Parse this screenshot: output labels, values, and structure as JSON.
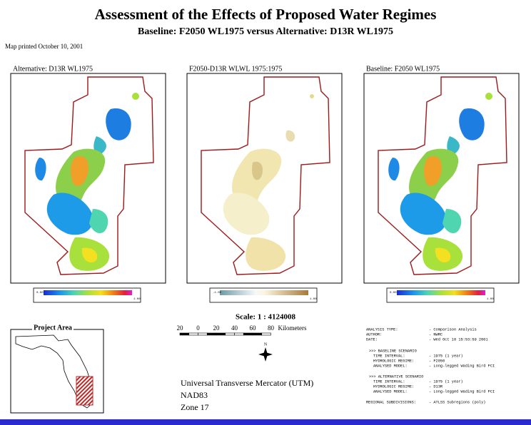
{
  "header": {
    "title": "Assessment of the Effects of Proposed Water Regimes",
    "subtitle": "Baseline: F2050 WL1975 versus Alternative: D13R WL1975",
    "printed": "Map printed October 10, 2001"
  },
  "panels": [
    {
      "label": "Alternative: D13R WL1975",
      "legend_min": "0.00",
      "legend_max": "1.00"
    },
    {
      "label": "F2050-D13R WLWL 1975:1975",
      "legend_min": "-1.00",
      "legend_max": "1.00"
    },
    {
      "label": "Baseline: F2050 WL1975",
      "legend_min": "0.00",
      "legend_max": "1.00"
    }
  ],
  "scale": {
    "text": "Scale: 1 : 4124008",
    "ticks": [
      "20",
      "0",
      "20",
      "40",
      "60",
      "80"
    ],
    "unit": "Kilometers"
  },
  "north": "N",
  "projection": [
    "Universal Transverse Mercator (UTM)",
    "NAD83",
    "Zone 17"
  ],
  "inset": {
    "title": "Project Area"
  },
  "info": [
    {
      "key": "ANALYSIS TYPE:",
      "value": "- Comparison Analysis"
    },
    {
      "key": "AUTHOR:",
      "value": "- NWRC"
    },
    {
      "key": "DATE:",
      "value": "- Wed Oct 10 15:53:59 2001"
    },
    {
      "key": ">>> BASELINE SCENARIO",
      "value": ""
    },
    {
      "key": "TIME INTERVAL:",
      "value": "- 1975 (1 year)"
    },
    {
      "key": "HYDROLOGIC REGIME:",
      "value": "- F2050"
    },
    {
      "key": "ANALYSED MODEL:",
      "value": "- Long-legged Wading Bird FCI"
    },
    {
      "key": ">>> ALTERNATIVE SCENARIO",
      "value": ""
    },
    {
      "key": "TIME INTERVAL:",
      "value": "- 1975 (1 year)"
    },
    {
      "key": "HYDROLOGIC REGIME:",
      "value": "- D13R"
    },
    {
      "key": "ANALYSED MODEL:",
      "value": "- Long-legged Wading Bird FCI"
    },
    {
      "key": "REGIONAL SUBDIVISIONS:",
      "value": "- ATLSS Subregions (poly)"
    }
  ]
}
